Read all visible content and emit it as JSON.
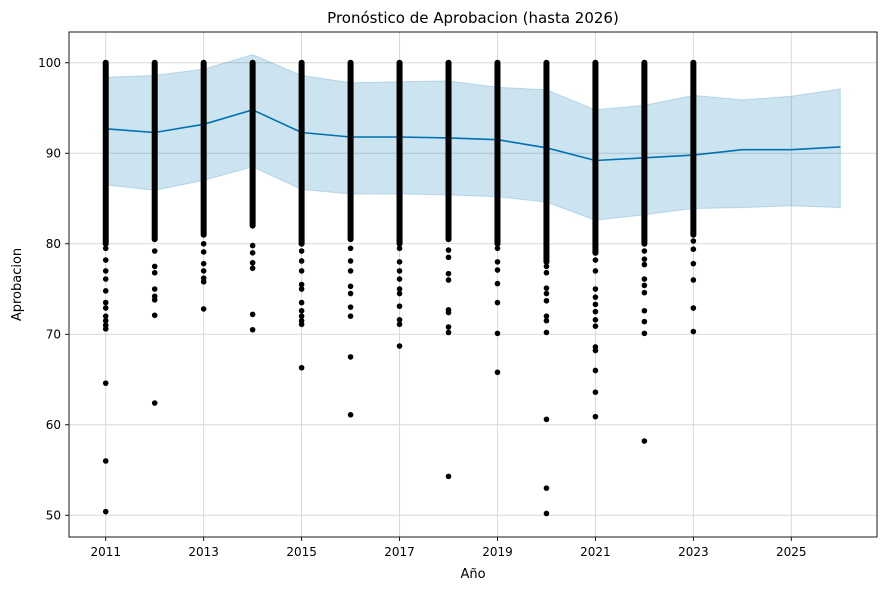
{
  "chart_data": {
    "type": "line",
    "title": "Pronóstico de Aprobacion (hasta 2026)",
    "xlabel": "Año",
    "ylabel": "Aprobacion",
    "xlim": [
      2010.25,
      2026.75
    ],
    "ylim": [
      47.6,
      103.4
    ],
    "x_ticks": [
      2011,
      2013,
      2015,
      2017,
      2019,
      2021,
      2023,
      2025
    ],
    "y_ticks": [
      50,
      60,
      70,
      80,
      90,
      100
    ],
    "grid": true,
    "colors": {
      "forecast": "#0072B2",
      "interval": "#0072B2",
      "observed": "#000000"
    },
    "forecast": {
      "x": [
        2011,
        2012,
        2013,
        2014,
        2015,
        2016,
        2017,
        2018,
        2019,
        2020,
        2021,
        2022,
        2023,
        2024,
        2025,
        2026
      ],
      "yhat": [
        92.7,
        92.3,
        93.2,
        94.8,
        92.3,
        91.8,
        91.8,
        91.7,
        91.5,
        90.6,
        89.2,
        89.5,
        89.8,
        90.4,
        90.4,
        90.7
      ],
      "yhat_lower": [
        86.5,
        85.9,
        87.0,
        88.5,
        86.0,
        85.5,
        85.5,
        85.4,
        85.2,
        84.6,
        82.6,
        83.2,
        83.9,
        84.0,
        84.2,
        84.0
      ],
      "yhat_upper": [
        98.4,
        98.6,
        99.3,
        100.9,
        98.6,
        97.8,
        97.9,
        98.0,
        97.3,
        97.0,
        94.8,
        95.3,
        96.4,
        95.9,
        96.3,
        97.1
      ]
    },
    "observed": [
      {
        "x": 2011,
        "dense_min": 80,
        "dense_max": 100,
        "outliers": [
          79.5,
          78.2,
          77.0,
          76.1,
          74.8,
          73.5,
          72.9,
          72.0,
          71.5,
          71.0,
          70.6,
          64.6,
          56.0,
          50.4
        ]
      },
      {
        "x": 2012,
        "dense_min": 80.5,
        "dense_max": 100,
        "outliers": [
          79.2,
          77.5,
          76.8,
          75.0,
          74.2,
          73.8,
          72.1,
          62.4
        ]
      },
      {
        "x": 2013,
        "dense_min": 81,
        "dense_max": 100,
        "outliers": [
          80.0,
          79.1,
          77.8,
          77.0,
          76.2,
          75.8,
          72.8
        ]
      },
      {
        "x": 2014,
        "dense_min": 82,
        "dense_max": 100,
        "outliers": [
          79.8,
          79.0,
          77.9,
          77.3,
          72.2,
          70.5
        ]
      },
      {
        "x": 2015,
        "dense_min": 80,
        "dense_max": 100,
        "outliers": [
          79.2,
          78.1,
          77.0,
          75.5,
          75.0,
          73.5,
          72.6,
          72.0,
          71.5,
          71.1,
          66.3
        ]
      },
      {
        "x": 2016,
        "dense_min": 80.5,
        "dense_max": 100,
        "outliers": [
          79.5,
          78.1,
          77.0,
          75.3,
          74.5,
          73.0,
          72.0,
          67.5,
          61.1
        ]
      },
      {
        "x": 2017,
        "dense_min": 80,
        "dense_max": 100,
        "outliers": [
          79.5,
          78.0,
          77.0,
          76.1,
          75.0,
          74.5,
          73.1,
          71.6,
          71.1,
          68.7
        ]
      },
      {
        "x": 2018,
        "dense_min": 80.5,
        "dense_max": 100,
        "outliers": [
          79.3,
          78.5,
          76.7,
          76.0,
          72.7,
          72.4,
          70.8,
          70.2,
          54.3
        ]
      },
      {
        "x": 2019,
        "dense_min": 80,
        "dense_max": 100,
        "outliers": [
          79.5,
          78.0,
          77.1,
          75.6,
          73.5,
          70.1,
          65.8
        ]
      },
      {
        "x": 2020,
        "dense_min": 78,
        "dense_max": 100,
        "outliers": [
          77.5,
          76.8,
          75.1,
          74.5,
          73.7,
          72.0,
          71.5,
          70.2,
          60.6,
          53.0,
          50.2
        ]
      },
      {
        "x": 2021,
        "dense_min": 79,
        "dense_max": 100,
        "outliers": [
          78.2,
          77.0,
          75.0,
          74.1,
          73.3,
          72.5,
          71.6,
          70.9,
          68.6,
          68.2,
          66.0,
          63.6,
          60.9
        ]
      },
      {
        "x": 2022,
        "dense_min": 80,
        "dense_max": 100,
        "outliers": [
          79.2,
          78.3,
          77.7,
          76.1,
          75.4,
          74.6,
          72.6,
          71.4,
          70.1,
          58.2
        ]
      },
      {
        "x": 2023,
        "dense_min": 81,
        "dense_max": 100,
        "outliers": [
          80.3,
          79.4,
          77.8,
          76.0,
          72.9,
          70.3
        ]
      }
    ]
  }
}
